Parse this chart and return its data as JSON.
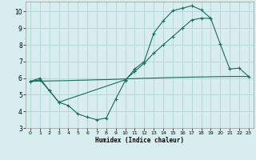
{
  "xlabel": "Humidex (Indice chaleur)",
  "background_color": "#d8eeee",
  "grid_color": "#b8d8d8",
  "line_color": "#1a6b5a",
  "xlim": [
    -0.5,
    23.5
  ],
  "ylim": [
    3,
    10.6
  ],
  "yticks": [
    3,
    4,
    5,
    6,
    7,
    8,
    9,
    10
  ],
  "xticks": [
    0,
    1,
    2,
    3,
    4,
    5,
    6,
    7,
    8,
    9,
    10,
    11,
    12,
    13,
    14,
    15,
    16,
    17,
    18,
    19,
    20,
    21,
    22,
    23
  ],
  "line1_x": [
    0,
    1,
    2,
    3,
    4,
    5,
    6,
    7,
    8,
    9,
    10,
    11,
    12,
    13,
    14,
    15,
    16,
    17,
    18,
    19,
    20,
    21,
    22,
    23
  ],
  "line1_y": [
    5.8,
    6.0,
    5.25,
    4.55,
    4.35,
    3.85,
    3.65,
    3.5,
    3.6,
    4.75,
    5.85,
    6.55,
    7.0,
    8.7,
    9.45,
    10.05,
    10.2,
    10.35,
    10.1,
    9.6,
    null,
    null,
    null,
    null
  ],
  "line2_x": [
    0,
    1,
    2,
    3,
    10,
    11,
    12,
    13,
    14,
    15,
    16,
    17,
    18,
    19,
    20,
    21,
    22,
    23
  ],
  "line2_y": [
    5.8,
    5.9,
    5.25,
    4.55,
    5.9,
    6.4,
    6.9,
    7.5,
    8.0,
    8.5,
    9.0,
    9.5,
    9.6,
    9.6,
    8.05,
    6.55,
    6.6,
    6.1
  ],
  "line3_x": [
    0,
    1,
    2,
    3,
    4,
    5,
    6,
    7,
    8,
    9,
    10,
    11,
    12,
    13,
    14,
    15,
    16,
    17,
    18,
    19,
    20,
    21,
    22,
    23
  ],
  "line3_y": [
    5.8,
    5.82,
    5.83,
    5.84,
    5.85,
    5.87,
    5.88,
    5.9,
    5.91,
    5.93,
    5.95,
    5.97,
    5.99,
    6.0,
    6.02,
    6.04,
    6.05,
    6.06,
    6.07,
    6.08,
    6.09,
    6.1,
    6.1,
    6.1
  ]
}
